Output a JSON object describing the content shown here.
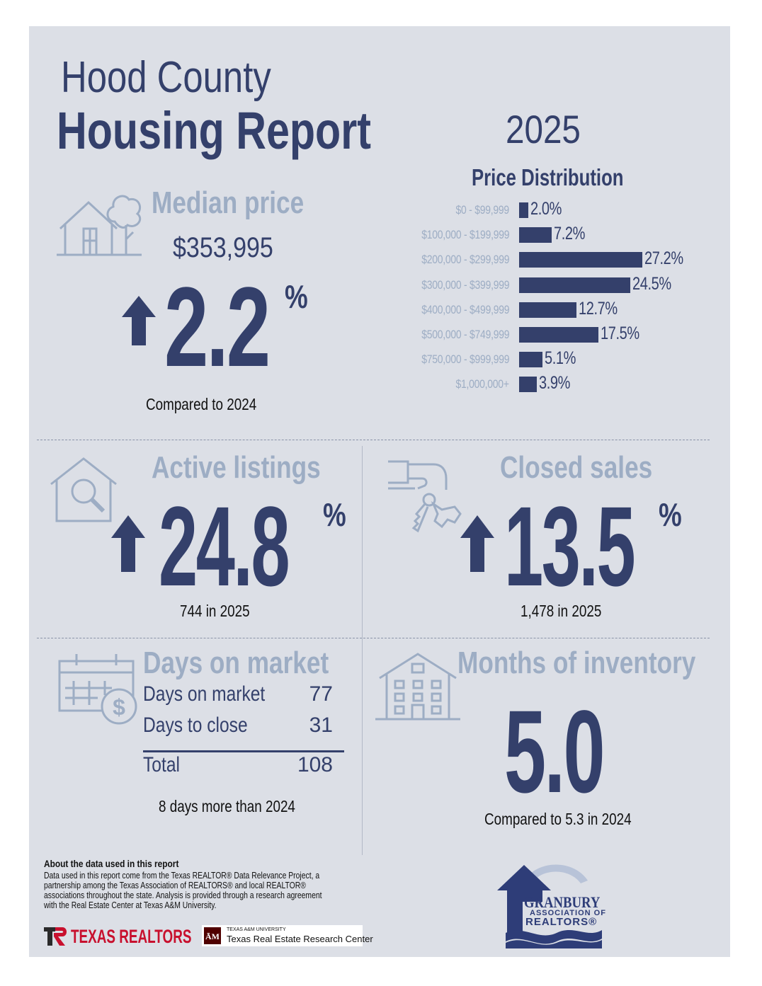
{
  "header": {
    "county": "Hood County",
    "title": "Housing Report",
    "year": "2025"
  },
  "median_price": {
    "label": "Median price",
    "value": "$353,995",
    "change": "2.2",
    "unit": "%",
    "compare": "Compared to 2024"
  },
  "price_distribution": {
    "title": "Price Distribution"
  },
  "chart_data": {
    "type": "bar",
    "orientation": "horizontal",
    "title": "Price Distribution",
    "categories": [
      "$0 - $99,999",
      "$100,000 - $199,999",
      "$200,000 - $299,999",
      "$300,000 - $399,999",
      "$400,000 - $499,999",
      "$500,000 - $749,999",
      "$750,000 - $999,999",
      "$1,000,000+"
    ],
    "values": [
      2.0,
      7.2,
      27.2,
      24.5,
      12.7,
      17.5,
      5.1,
      3.9
    ],
    "value_labels": [
      "2.0%",
      "7.2%",
      "27.2%",
      "24.5%",
      "12.7%",
      "17.5%",
      "5.1%",
      "3.9%"
    ],
    "xlim": [
      0,
      27.2
    ],
    "color": "#34406b"
  },
  "active_listings": {
    "label": "Active listings",
    "change": "24.8",
    "unit": "%",
    "caption": "744 in 2025"
  },
  "closed_sales": {
    "label": "Closed sales",
    "change": "13.5",
    "unit": "%",
    "caption": "1,478 in 2025"
  },
  "days_on_market": {
    "label": "Days on market",
    "rows": [
      {
        "label": "Days on market",
        "value": "77"
      },
      {
        "label": "Days to close",
        "value": "31"
      }
    ],
    "total_label": "Total",
    "total_value": "108",
    "caption": "8 days more than 2024"
  },
  "months_inventory": {
    "label": "Months of inventory",
    "value": "5.0",
    "caption": "Compared to 5.3 in 2024"
  },
  "footer": {
    "about_title": "About the data used in this report",
    "about_lines": [
      "Data used in this report come from the Texas REALTOR® Data Relevance Project, a",
      "partnership among the Texas Association of REALTORS® and local REALTOR®",
      "associations throughout the state. Analysis is provided through a research agreement",
      "with the Real Estate Center at Texas A&M University."
    ],
    "texas_realtors": "TEXAS REALTORS",
    "tamu_small": "TEXAS A&M UNIVERSITY",
    "tamu_center": "Texas Real Estate Research Center",
    "granbury_name": "GRANBURY",
    "granbury_assoc": "ASSOCIATION OF",
    "granbury_realtors": "REALTORS®"
  },
  "colors": {
    "background": "#dcdfe6",
    "navy": "#34406b",
    "light": "#9dadc4"
  },
  "icons": [
    "house-tree-icon",
    "house-search-icon",
    "hand-key-icon",
    "calendar-dollar-icon",
    "apartment-building-icon",
    "up-arrow-icon"
  ]
}
